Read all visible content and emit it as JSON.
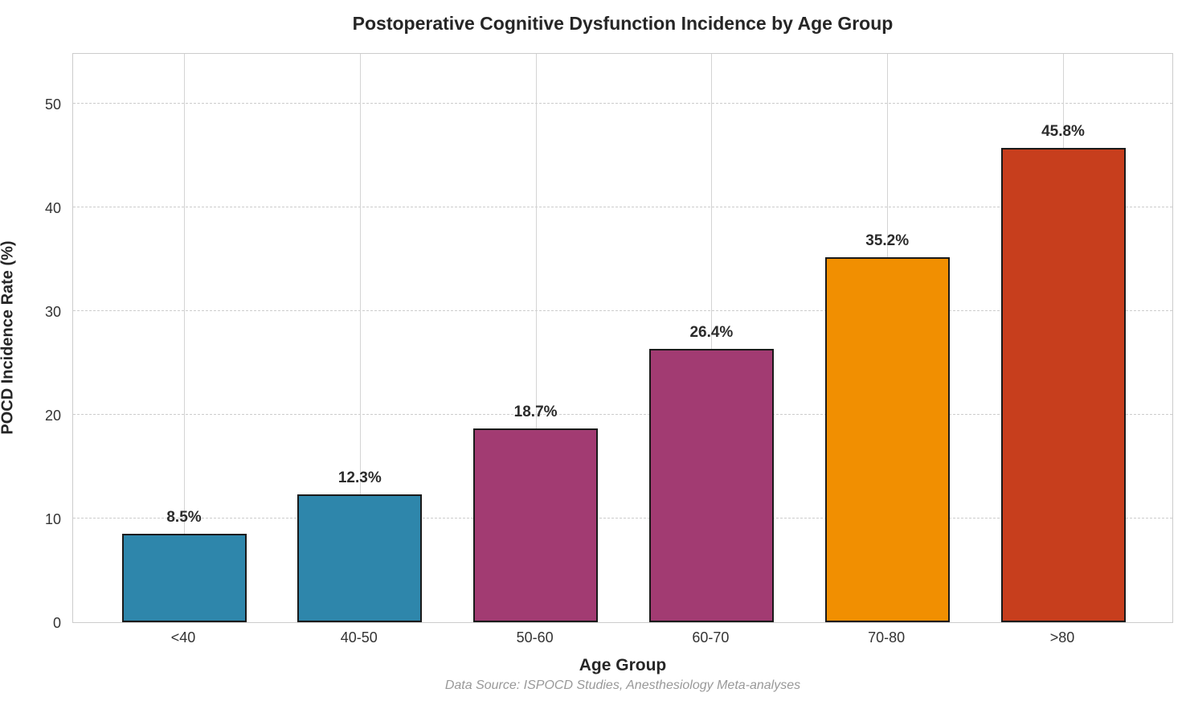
{
  "chart_data": {
    "type": "bar",
    "title": "Postoperative Cognitive Dysfunction Incidence by Age Group",
    "xlabel": "Age Group",
    "ylabel": "POCD Incidence Rate (%)",
    "caption": "Data Source: ISPOCD Studies, Anesthesiology Meta-analyses",
    "categories": [
      "<40",
      "40-50",
      "50-60",
      "60-70",
      "70-80",
      ">80"
    ],
    "values": [
      8.5,
      12.3,
      18.7,
      26.4,
      35.2,
      45.8
    ],
    "value_labels": [
      "8.5%",
      "12.3%",
      "18.7%",
      "26.4%",
      "35.2%",
      "45.8%"
    ],
    "bar_colors": [
      "#2E86AB",
      "#2E86AB",
      "#A23B72",
      "#A23B72",
      "#F18F01",
      "#C73E1D"
    ],
    "bar_edge_color": "#1a1a1a",
    "yticks": [
      0,
      10,
      20,
      30,
      40,
      50
    ],
    "ylim": [
      0,
      55
    ],
    "grid": {
      "horizontal_style": "dashed",
      "vertical_style": "solid",
      "color": "#cccccc"
    },
    "legend": "none",
    "background_color": "#ffffff"
  }
}
